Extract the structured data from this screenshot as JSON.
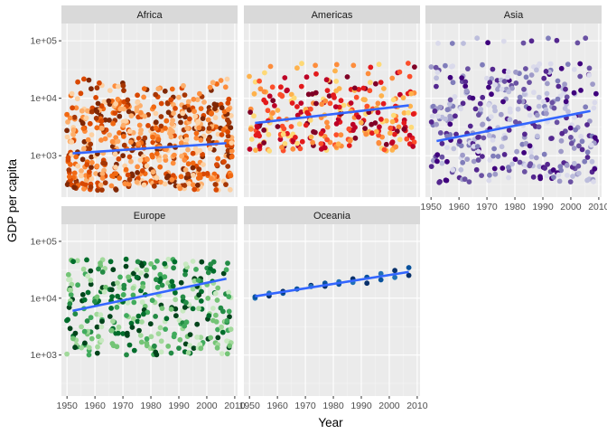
{
  "chart_data": {
    "type": "scatter",
    "xlabel": "Year",
    "ylabel": "GDP per capita",
    "y_scale": "log10",
    "xlim": [
      1948,
      2011
    ],
    "ylim": [
      190,
      200000
    ],
    "x_ticks": [
      1950,
      1960,
      1970,
      1980,
      1990,
      2000,
      2010
    ],
    "x_tick_labels": [
      "1950",
      "1960",
      "1970",
      "1980",
      "1990",
      "2000",
      "2010"
    ],
    "y_ticks": [
      1000,
      10000,
      100000
    ],
    "y_tick_labels": [
      "1e+03",
      "1e+04",
      "1e+05"
    ],
    "grid": true,
    "legend": "none",
    "trend_line_color": "#3366FF",
    "facets": [
      {
        "name": "Africa",
        "palette": [
          "#FDD0A2",
          "#FDAE6B",
          "#FD8D3C",
          "#F16913",
          "#D94801",
          "#A63603",
          "#7F2704"
        ],
        "fit": {
          "x": [
            1952,
            2007
          ],
          "y": [
            1100,
            1650
          ]
        },
        "clusters": [
          {
            "y_min": 250,
            "y_max": 9000,
            "n_per_year": 48
          },
          {
            "y_min": 9000,
            "y_max": 22000,
            "n_per_year": 4
          }
        ]
      },
      {
        "name": "Americas",
        "palette": [
          "#FED976",
          "#FEB24C",
          "#FD8D3C",
          "#FC4E2A",
          "#E31A1C",
          "#BD0026",
          "#800026"
        ],
        "fit": {
          "x": [
            1952,
            2007
          ],
          "y": [
            3700,
            7500
          ]
        },
        "clusters": [
          {
            "y_min": 1200,
            "y_max": 15000,
            "n_per_year": 22
          },
          {
            "y_min": 15000,
            "y_max": 43000,
            "n_per_year": 3
          }
        ]
      },
      {
        "name": "Asia",
        "palette": [
          "#DADAEB",
          "#BCBDDC",
          "#9E9AC8",
          "#807DBA",
          "#6A51A3",
          "#54278F",
          "#3F007D"
        ],
        "fit": {
          "x": [
            1952,
            2007
          ],
          "y": [
            1800,
            6000
          ]
        },
        "clusters": [
          {
            "y_min": 330,
            "y_max": 40000,
            "n_per_year": 30
          },
          {
            "y_min": 90000,
            "y_max": 113000,
            "n_per_year": 1
          }
        ]
      },
      {
        "name": "Europe",
        "palette": [
          "#C7E9C0",
          "#A1D99B",
          "#74C476",
          "#41AB5D",
          "#238B45",
          "#006D2C",
          "#00441B"
        ],
        "fit": {
          "x": [
            1952,
            2007
          ],
          "y": [
            6000,
            22000
          ]
        },
        "clusters": [
          {
            "y_min": 1000,
            "y_max": 50000,
            "n_per_year": 28
          }
        ]
      },
      {
        "name": "Oceania",
        "palette": [
          "#2171B5",
          "#08519C",
          "#08306B"
        ],
        "fit": {
          "x": [
            1952,
            2007
          ],
          "y": [
            10800,
            29000
          ]
        },
        "points": [
          {
            "x": 1952,
            "y": 10040
          },
          {
            "x": 1952,
            "y": 10557
          },
          {
            "x": 1957,
            "y": 10950
          },
          {
            "x": 1957,
            "y": 12247
          },
          {
            "x": 1962,
            "y": 12218
          },
          {
            "x": 1962,
            "y": 13176
          },
          {
            "x": 1967,
            "y": 14526
          },
          {
            "x": 1967,
            "y": 14464
          },
          {
            "x": 1972,
            "y": 16789
          },
          {
            "x": 1972,
            "y": 16046
          },
          {
            "x": 1977,
            "y": 18334
          },
          {
            "x": 1977,
            "y": 16234
          },
          {
            "x": 1982,
            "y": 19477
          },
          {
            "x": 1982,
            "y": 17632
          },
          {
            "x": 1987,
            "y": 21889
          },
          {
            "x": 1987,
            "y": 19007
          },
          {
            "x": 1992,
            "y": 23425
          },
          {
            "x": 1992,
            "y": 18363
          },
          {
            "x": 1997,
            "y": 26998
          },
          {
            "x": 1997,
            "y": 21050
          },
          {
            "x": 2002,
            "y": 30688
          },
          {
            "x": 2002,
            "y": 23190
          },
          {
            "x": 2007,
            "y": 34435
          },
          {
            "x": 2007,
            "y": 25185
          }
        ]
      }
    ]
  }
}
